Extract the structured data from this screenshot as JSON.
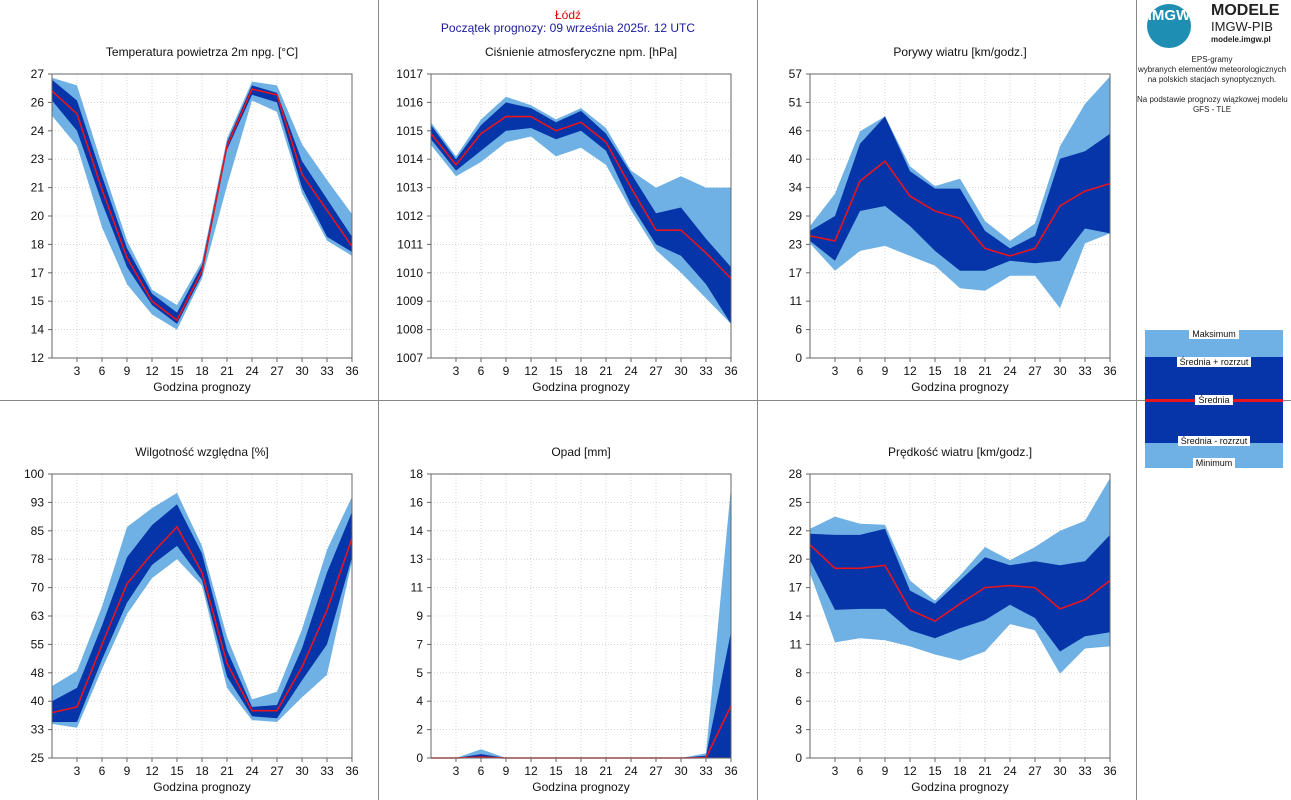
{
  "header": {
    "city": "Łódź",
    "run": "Początek prognozy: 09 września 2025r. 12 UTC"
  },
  "logo": {
    "circle_text": "IMGW",
    "title": "MODELE",
    "subtitle": "IMGW-PIB",
    "url": "modele.imgw.pl"
  },
  "description": {
    "line1": "EPS-gramy",
    "line2": "wybranych elementów meteorologicznych",
    "line3": "na polskich stacjach  synoptycznych.",
    "line4": "Na podstawie prognozy wiązkowej modelu",
    "line5": "GFS - TLE"
  },
  "legend": {
    "max": "Maksimum",
    "plus": "Średnia + rozrzut",
    "mean": "Średnia",
    "minus": "Średnia - rozrzut",
    "min": "Minimum"
  },
  "colors": {
    "light_band": "#6fb1e4",
    "dark_band": "#0535a8",
    "mean_line": "#e8141e",
    "grid": "#bbbbbb"
  },
  "chart_data": [
    {
      "type": "area",
      "title": "Temperatura powietrza 2m npg. [°C]",
      "xlabel": "Godzina prognozy",
      "xlim": [
        0,
        36
      ],
      "x_ticks": [
        3,
        6,
        9,
        12,
        15,
        18,
        21,
        24,
        27,
        30,
        33,
        36
      ],
      "ylim": [
        12,
        27
      ],
      "y_ticks": [
        "12",
        "14",
        "15",
        "17",
        "18",
        "20",
        "21",
        "23",
        "24",
        "26",
        "27"
      ],
      "x": [
        0,
        3,
        6,
        9,
        12,
        15,
        18,
        21,
        24,
        27,
        30,
        33,
        36
      ],
      "max": [
        26.8,
        26.4,
        22.2,
        18.2,
        15.6,
        14.8,
        17.1,
        23.6,
        26.6,
        26.4,
        23.3,
        21.4,
        19.6
      ],
      "mean_plus": [
        26.7,
        25.6,
        21.6,
        17.8,
        15.4,
        14.4,
        16.9,
        23.4,
        26.4,
        26.0,
        22.4,
        20.4,
        18.4
      ],
      "mean": [
        26.1,
        24.9,
        20.9,
        17.3,
        15.0,
        14.0,
        16.6,
        23.2,
        26.2,
        25.9,
        21.7,
        19.8,
        17.9
      ],
      "mean_minus": [
        25.6,
        24.0,
        20.2,
        16.8,
        14.8,
        13.8,
        16.4,
        23.0,
        25.9,
        25.5,
        21.0,
        18.4,
        17.6
      ],
      "min": [
        24.8,
        23.2,
        18.9,
        15.9,
        14.3,
        13.5,
        16.2,
        21.1,
        25.6,
        25.0,
        20.7,
        18.2,
        17.4
      ]
    },
    {
      "type": "area",
      "title": "Ciśnienie atmosferyczne npm. [hPa]",
      "xlabel": "Godzina prognozy",
      "xlim": [
        0,
        36
      ],
      "x_ticks": [
        3,
        6,
        9,
        12,
        15,
        18,
        21,
        24,
        27,
        30,
        33,
        36
      ],
      "ylim": [
        1007,
        1017
      ],
      "y_ticks": [
        "1007",
        "1008",
        "1009",
        "1010",
        "1011",
        "1012",
        "1013",
        "1014",
        "1015",
        "1016",
        "1017"
      ],
      "x": [
        0,
        3,
        6,
        9,
        12,
        15,
        18,
        21,
        24,
        27,
        30,
        33,
        36
      ],
      "max": [
        1015.3,
        1014.1,
        1015.4,
        1016.2,
        1015.9,
        1015.4,
        1015.8,
        1015.1,
        1013.6,
        1013.0,
        1013.4,
        1013.0,
        1013.0
      ],
      "mean_plus": [
        1015.2,
        1014.0,
        1015.2,
        1016.0,
        1015.8,
        1015.3,
        1015.7,
        1014.9,
        1013.5,
        1012.1,
        1012.3,
        1011.2,
        1010.2
      ],
      "mean": [
        1014.9,
        1013.8,
        1014.9,
        1015.5,
        1015.5,
        1015.0,
        1015.3,
        1014.6,
        1013.0,
        1011.5,
        1011.5,
        1010.7,
        1009.8
      ],
      "mean_minus": [
        1014.7,
        1013.6,
        1014.3,
        1015.0,
        1015.1,
        1014.7,
        1015.0,
        1014.3,
        1012.4,
        1011.0,
        1010.6,
        1009.6,
        1008.2
      ],
      "min": [
        1014.5,
        1013.4,
        1013.9,
        1014.6,
        1014.8,
        1014.1,
        1014.4,
        1013.8,
        1012.2,
        1010.8,
        1010.0,
        1009.1,
        1008.2
      ]
    },
    {
      "type": "area",
      "title": "Porywy wiatru [km/godz.]",
      "xlabel": "Godzina prognozy",
      "xlim": [
        0,
        36
      ],
      "x_ticks": [
        3,
        6,
        9,
        12,
        15,
        18,
        21,
        24,
        27,
        30,
        33,
        36
      ],
      "ylim": [
        0,
        57
      ],
      "y_ticks": [
        "0",
        "6",
        "11",
        "17",
        "23",
        "29",
        "34",
        "40",
        "46",
        "51",
        "57"
      ],
      "x": [
        0,
        3,
        6,
        9,
        12,
        15,
        18,
        21,
        24,
        27,
        30,
        33,
        36
      ],
      "max": [
        26.5,
        33.0,
        45.5,
        48.5,
        38.5,
        34.5,
        36.0,
        27.5,
        23.5,
        27.0,
        42.5,
        51.0,
        56.5
      ],
      "mean_plus": [
        25.5,
        28.5,
        43.0,
        48.5,
        37.5,
        34.0,
        34.0,
        25.5,
        22.0,
        24.5,
        40.0,
        41.5,
        45.0
      ],
      "mean": [
        24.5,
        23.5,
        35.5,
        39.5,
        32.5,
        29.5,
        28.0,
        22.0,
        20.5,
        22.0,
        30.5,
        33.5,
        35.0
      ],
      "mean_minus": [
        23.5,
        19.5,
        29.5,
        30.5,
        26.5,
        21.5,
        17.5,
        17.5,
        19.5,
        19.0,
        19.5,
        26.0,
        25.0
      ],
      "min": [
        23.0,
        17.5,
        21.5,
        22.5,
        20.5,
        18.5,
        14.0,
        13.5,
        16.5,
        16.5,
        10.0,
        23.0,
        25.0
      ]
    },
    {
      "type": "area",
      "title": "Wilgotność względna [%]",
      "xlabel": "Godzina prognozy",
      "xlim": [
        0,
        36
      ],
      "x_ticks": [
        3,
        6,
        9,
        12,
        15,
        18,
        21,
        24,
        27,
        30,
        33,
        36
      ],
      "ylim": [
        25,
        100
      ],
      "y_ticks": [
        "25",
        "33",
        "40",
        "48",
        "55",
        "63",
        "70",
        "78",
        "85",
        "93",
        "100"
      ],
      "x": [
        0,
        3,
        6,
        9,
        12,
        15,
        18,
        21,
        24,
        27,
        30,
        33,
        36
      ],
      "max": [
        44.0,
        48.0,
        65.0,
        86.0,
        91.0,
        95.0,
        81.0,
        57.0,
        40.5,
        42.5,
        59.0,
        80.0,
        94.0
      ],
      "mean_plus": [
        40.0,
        43.5,
        60.0,
        78.0,
        86.5,
        92.0,
        79.0,
        53.5,
        38.5,
        39.0,
        54.0,
        74.0,
        90.0
      ],
      "mean": [
        37.0,
        38.5,
        55.0,
        71.0,
        79.0,
        86.0,
        74.0,
        50.0,
        37.5,
        37.5,
        49.0,
        64.0,
        83.0
      ],
      "mean_minus": [
        34.5,
        34.5,
        51.0,
        66.0,
        76.0,
        81.0,
        72.0,
        46.5,
        36.0,
        35.5,
        45.5,
        55.0,
        78.0
      ],
      "min": [
        34.0,
        33.0,
        48.5,
        63.0,
        72.5,
        77.5,
        70.5,
        43.5,
        35.0,
        34.5,
        41.0,
        47.0,
        77.0
      ]
    },
    {
      "type": "area",
      "title": "Opad [mm]",
      "xlabel": "Godzina prognozy",
      "xlim": [
        0,
        36
      ],
      "x_ticks": [
        3,
        6,
        9,
        12,
        15,
        18,
        21,
        24,
        27,
        30,
        33,
        36
      ],
      "ylim": [
        0,
        18
      ],
      "y_ticks": [
        "0",
        "2",
        "4",
        "5",
        "7",
        "9",
        "11",
        "13",
        "14",
        "16",
        "18"
      ],
      "x": [
        0,
        3,
        6,
        9,
        12,
        15,
        18,
        21,
        24,
        27,
        30,
        33,
        36
      ],
      "max": [
        0,
        0,
        0.55,
        0,
        0,
        0,
        0,
        0,
        0,
        0,
        0,
        0.3,
        17.2
      ],
      "mean_plus": [
        0,
        0,
        0.25,
        0,
        0,
        0,
        0,
        0,
        0,
        0,
        0,
        0.15,
        8.0
      ],
      "mean": [
        0,
        0,
        0.05,
        0,
        0,
        0,
        0,
        0,
        0,
        0,
        0,
        0.02,
        3.3
      ],
      "mean_minus": [
        0,
        0,
        0,
        0,
        0,
        0,
        0,
        0,
        0,
        0,
        0,
        0,
        0
      ],
      "min": [
        0,
        0,
        0,
        0,
        0,
        0,
        0,
        0,
        0,
        0,
        0,
        0,
        0
      ]
    },
    {
      "type": "area",
      "title": "Prędkość wiatru [km/godz.]",
      "xlabel": "Godzina prognozy",
      "xlim": [
        0,
        36
      ],
      "x_ticks": [
        3,
        6,
        9,
        12,
        15,
        18,
        21,
        24,
        27,
        30,
        33,
        36
      ],
      "ylim": [
        0,
        28
      ],
      "y_ticks": [
        "0",
        "3",
        "6",
        "8",
        "11",
        "14",
        "17",
        "20",
        "22",
        "25",
        "28"
      ],
      "x": [
        0,
        3,
        6,
        9,
        12,
        15,
        18,
        21,
        24,
        27,
        30,
        33,
        36
      ],
      "max": [
        22.6,
        23.8,
        23.1,
        23.0,
        17.5,
        15.5,
        18.0,
        20.8,
        19.5,
        20.8,
        22.4,
        23.4,
        27.6
      ],
      "mean_plus": [
        22.1,
        22.0,
        22.0,
        22.6,
        16.5,
        15.2,
        17.5,
        19.8,
        19.0,
        19.4,
        19.0,
        19.4,
        22.0
      ],
      "mean": [
        21.0,
        18.7,
        18.7,
        19.0,
        14.6,
        13.5,
        15.2,
        16.8,
        17.0,
        16.8,
        14.7,
        15.6,
        17.5
      ],
      "mean_minus": [
        19.5,
        14.6,
        14.7,
        14.7,
        12.6,
        11.8,
        12.8,
        13.6,
        15.1,
        13.8,
        10.5,
        12.0,
        12.4
      ],
      "min": [
        18.2,
        11.4,
        11.8,
        11.6,
        11.0,
        10.2,
        9.6,
        10.5,
        13.2,
        12.6,
        8.3,
        10.8,
        11.0
      ]
    }
  ]
}
